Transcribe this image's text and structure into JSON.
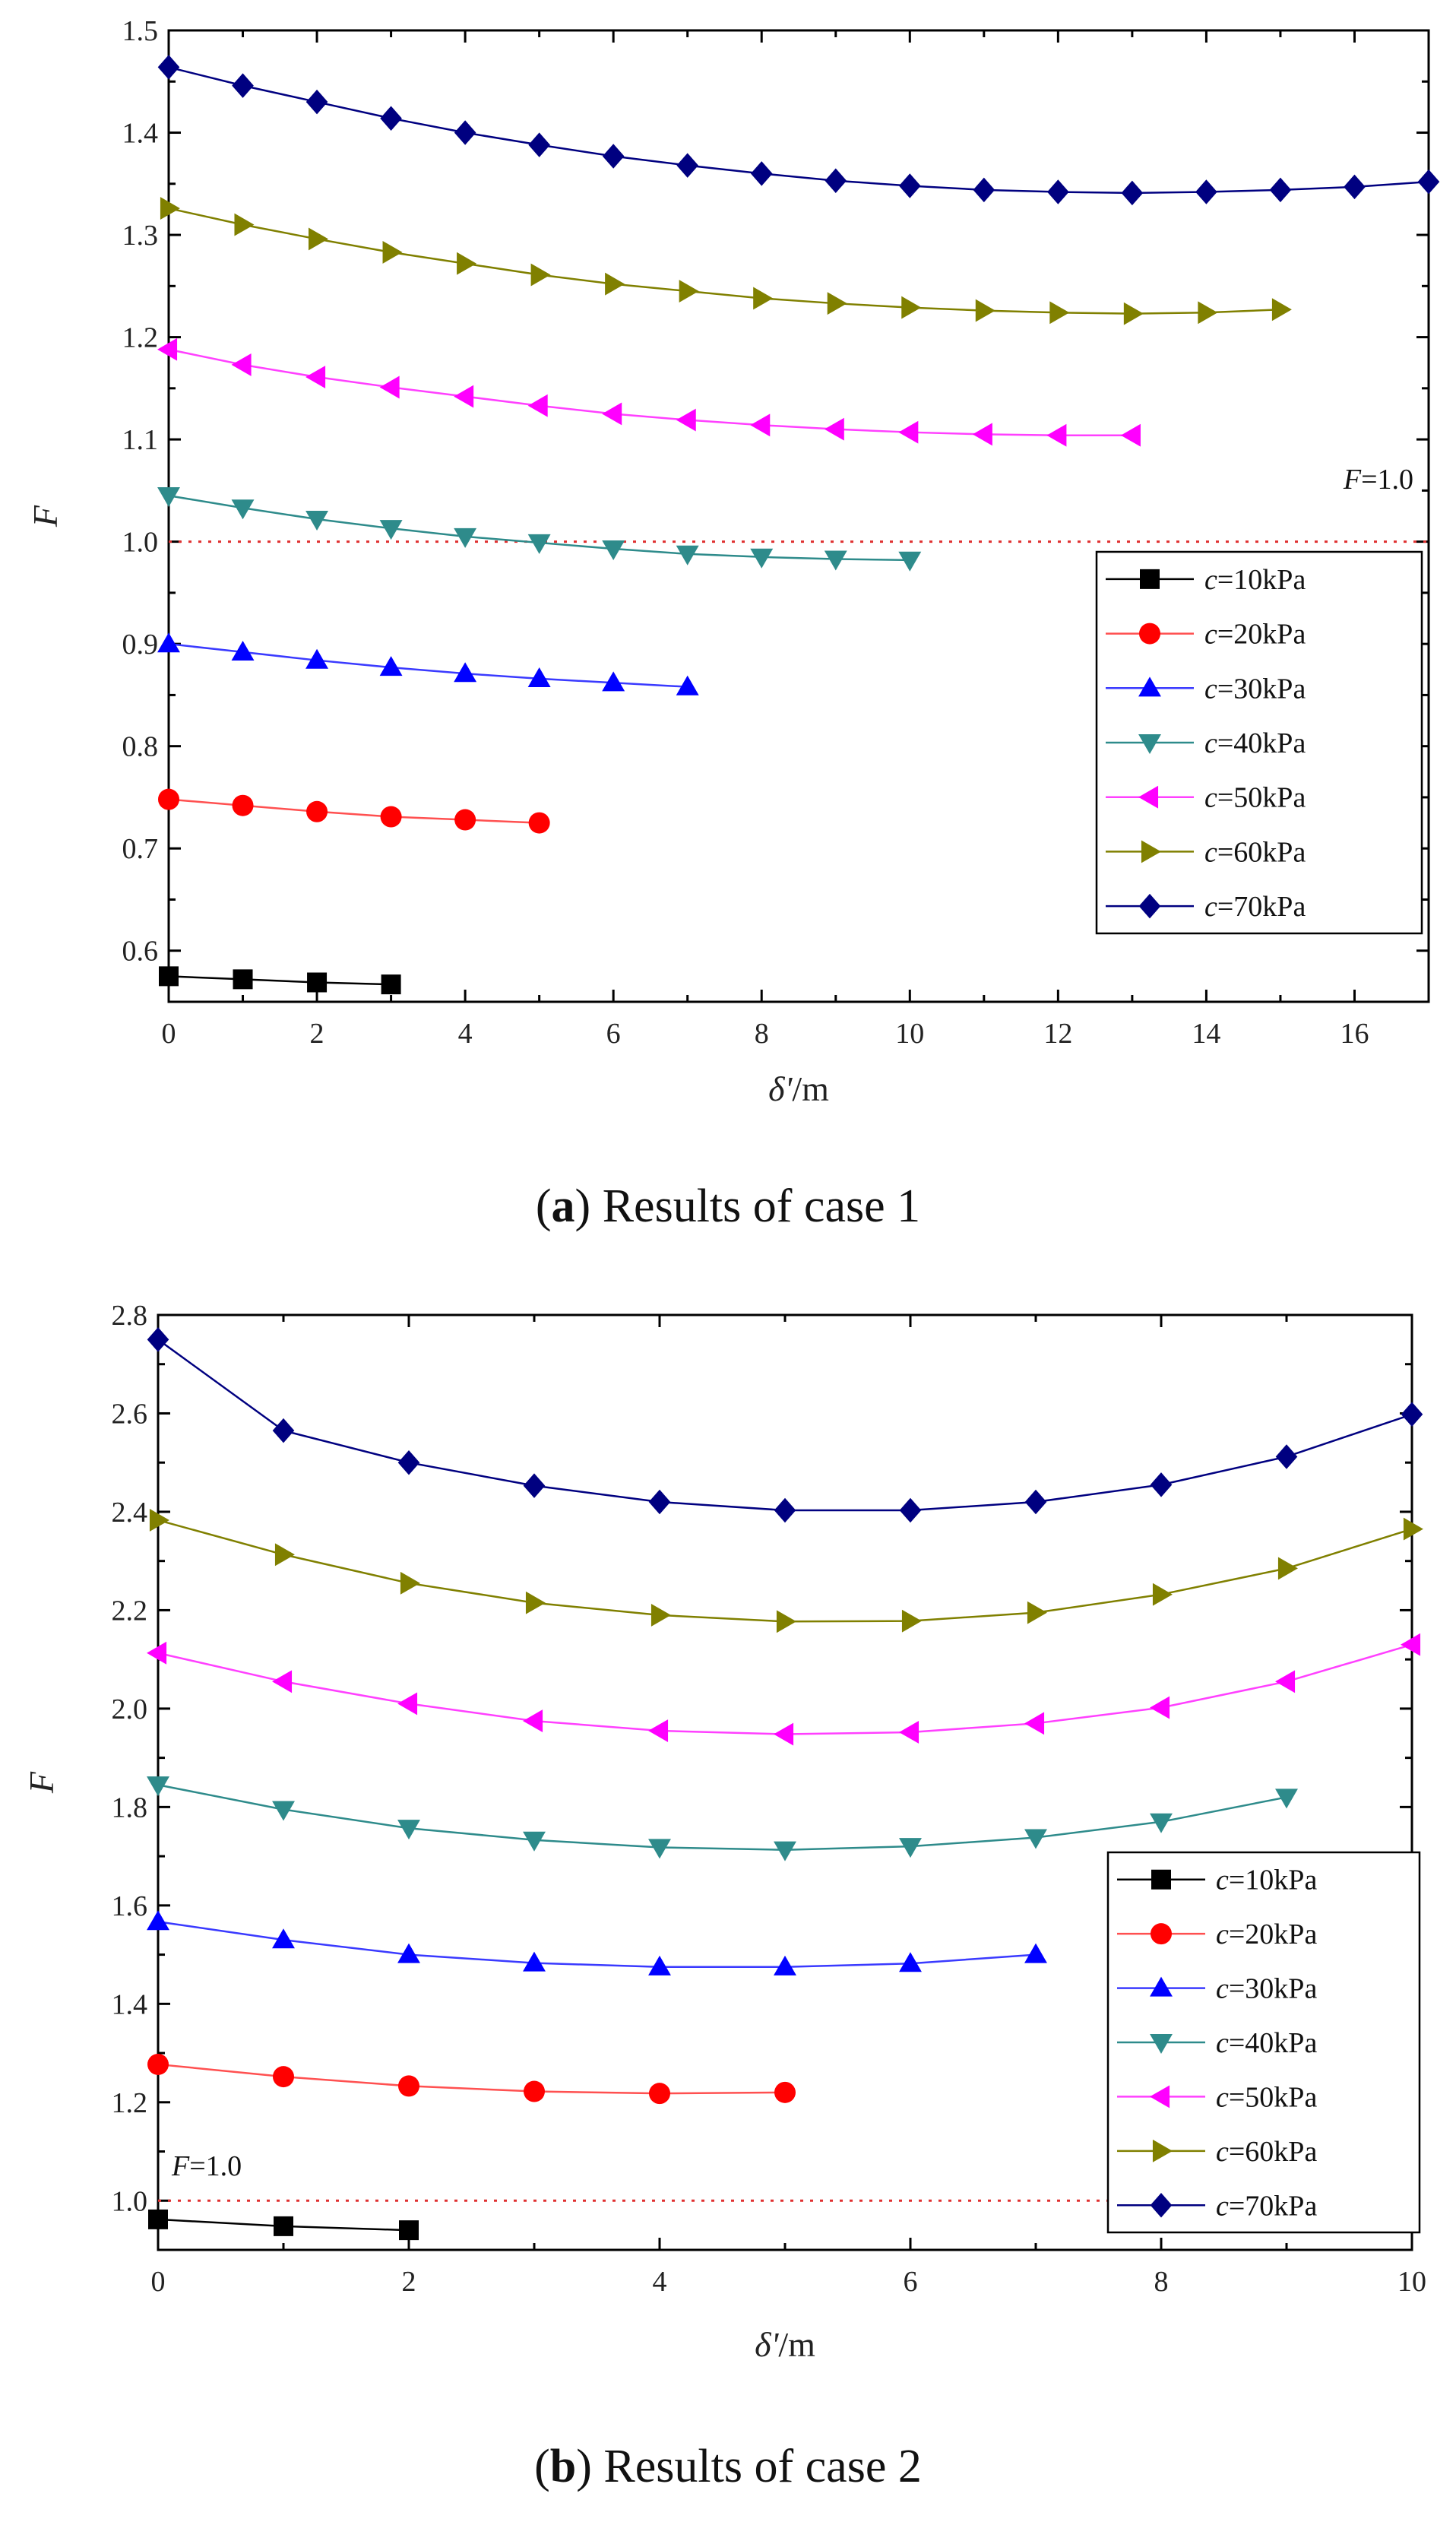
{
  "chart_data": [
    {
      "id": "a",
      "type": "line",
      "caption_letter": "a",
      "caption_text": "Results of case 1",
      "xlabel": "δ'/m",
      "ylabel": "F",
      "xlim": [
        0,
        17
      ],
      "ylim": [
        0.55,
        1.5
      ],
      "xticks": [
        0,
        2,
        4,
        6,
        8,
        10,
        12,
        14,
        16
      ],
      "xtick_labels": [
        "0",
        "2",
        "4",
        "6",
        "8",
        "10",
        "12",
        "14",
        "16"
      ],
      "yticks": [
        0.6,
        0.7,
        0.8,
        0.9,
        1.0,
        1.1,
        1.2,
        1.3,
        1.4,
        1.5
      ],
      "ytick_labels": [
        "0.6",
        "0.7",
        "0.8",
        "0.9",
        "1.0",
        "1.1",
        "1.2",
        "1.3",
        "1.4",
        "1.5"
      ],
      "reference_line": {
        "y": 1.0,
        "label": "F=1.0"
      },
      "legend_position": "right",
      "series": [
        {
          "name": "c=10kPa",
          "color": "#000000",
          "line_color": "#000000",
          "marker": "square",
          "x": [
            0,
            1,
            2,
            3
          ],
          "y": [
            0.575,
            0.572,
            0.569,
            0.567
          ]
        },
        {
          "name": "c=20kPa",
          "color": "#ff0000",
          "line_color": "#ff5050",
          "marker": "circle",
          "x": [
            0,
            1,
            2,
            3,
            4,
            5
          ],
          "y": [
            0.748,
            0.742,
            0.736,
            0.731,
            0.728,
            0.725
          ]
        },
        {
          "name": "c=30kPa",
          "color": "#0000ff",
          "line_color": "#3a3aff",
          "marker": "triangle-up",
          "x": [
            0,
            1,
            2,
            3,
            4,
            5,
            6,
            7
          ],
          "y": [
            0.9,
            0.892,
            0.884,
            0.877,
            0.871,
            0.866,
            0.862,
            0.858
          ]
        },
        {
          "name": "c=40kPa",
          "color": "#2e8b8b",
          "line_color": "#2e8b8b",
          "marker": "triangle-down",
          "x": [
            0,
            1,
            2,
            3,
            4,
            5,
            6,
            7,
            8,
            9,
            10
          ],
          "y": [
            1.045,
            1.033,
            1.022,
            1.013,
            1.005,
            0.999,
            0.993,
            0.988,
            0.985,
            0.983,
            0.982
          ]
        },
        {
          "name": "c=50kPa",
          "color": "#ff00ff",
          "line_color": "#ff40ff",
          "marker": "triangle-left",
          "x": [
            0,
            1,
            2,
            3,
            4,
            5,
            6,
            7,
            8,
            9,
            10,
            11,
            12,
            13
          ],
          "y": [
            1.188,
            1.173,
            1.161,
            1.151,
            1.142,
            1.133,
            1.125,
            1.119,
            1.114,
            1.11,
            1.107,
            1.105,
            1.104,
            1.104
          ]
        },
        {
          "name": "c=60kPa",
          "color": "#808000",
          "line_color": "#808000",
          "marker": "triangle-right",
          "x": [
            0,
            1,
            2,
            3,
            4,
            5,
            6,
            7,
            8,
            9,
            10,
            11,
            12,
            13,
            14,
            15
          ],
          "y": [
            1.326,
            1.31,
            1.296,
            1.283,
            1.272,
            1.261,
            1.252,
            1.245,
            1.238,
            1.233,
            1.229,
            1.226,
            1.224,
            1.223,
            1.224,
            1.227
          ]
        },
        {
          "name": "c=70kPa",
          "color": "#000080",
          "line_color": "#000080",
          "marker": "diamond",
          "x": [
            0,
            1,
            2,
            3,
            4,
            5,
            6,
            7,
            8,
            9,
            10,
            11,
            12,
            13,
            14,
            15,
            16,
            17
          ],
          "y": [
            1.464,
            1.446,
            1.43,
            1.414,
            1.4,
            1.388,
            1.377,
            1.368,
            1.36,
            1.353,
            1.348,
            1.344,
            1.342,
            1.341,
            1.342,
            1.344,
            1.347,
            1.352
          ]
        }
      ]
    },
    {
      "id": "b",
      "type": "line",
      "caption_letter": "b",
      "caption_text": "Results of case 2",
      "xlabel": "δ'/m",
      "ylabel": "F",
      "xlim": [
        0,
        10
      ],
      "ylim": [
        0.9,
        2.8
      ],
      "xticks": [
        0,
        2,
        4,
        6,
        8,
        10
      ],
      "xtick_labels": [
        "0",
        "2",
        "4",
        "6",
        "8",
        "10"
      ],
      "yticks": [
        1.0,
        1.2,
        1.4,
        1.6,
        1.8,
        2.0,
        2.2,
        2.4,
        2.6,
        2.8
      ],
      "ytick_labels": [
        "1.0",
        "1.2",
        "1.4",
        "1.6",
        "1.8",
        "2.0",
        "2.2",
        "2.4",
        "2.6",
        "2.8"
      ],
      "reference_line": {
        "y": 1.0,
        "label": "F=1.0"
      },
      "legend_position": "right",
      "series": [
        {
          "name": "c=10kPa",
          "color": "#000000",
          "line_color": "#000000",
          "marker": "square",
          "x": [
            0,
            1,
            2
          ],
          "y": [
            0.962,
            0.948,
            0.94
          ]
        },
        {
          "name": "c=20kPa",
          "color": "#ff0000",
          "line_color": "#ff5050",
          "marker": "circle",
          "x": [
            0,
            1,
            2,
            3,
            4,
            5
          ],
          "y": [
            1.277,
            1.252,
            1.233,
            1.222,
            1.218,
            1.22
          ]
        },
        {
          "name": "c=30kPa",
          "color": "#0000ff",
          "line_color": "#3a3aff",
          "marker": "triangle-up",
          "x": [
            0,
            1,
            2,
            3,
            4,
            5,
            6,
            7
          ],
          "y": [
            1.567,
            1.53,
            1.5,
            1.483,
            1.475,
            1.475,
            1.482,
            1.5
          ]
        },
        {
          "name": "c=40kPa",
          "color": "#2e8b8b",
          "line_color": "#2e8b8b",
          "marker": "triangle-down",
          "x": [
            0,
            1,
            2,
            3,
            4,
            5,
            6,
            7,
            8,
            9
          ],
          "y": [
            1.845,
            1.795,
            1.757,
            1.733,
            1.718,
            1.713,
            1.72,
            1.738,
            1.77,
            1.82
          ]
        },
        {
          "name": "c=50kPa",
          "color": "#ff00ff",
          "line_color": "#ff40ff",
          "marker": "triangle-left",
          "x": [
            0,
            1,
            2,
            3,
            4,
            5,
            6,
            7,
            8,
            9,
            10
          ],
          "y": [
            2.113,
            2.055,
            2.01,
            1.975,
            1.955,
            1.948,
            1.952,
            1.97,
            2.002,
            2.055,
            2.13
          ]
        },
        {
          "name": "c=60kPa",
          "color": "#808000",
          "line_color": "#808000",
          "marker": "triangle-right",
          "x": [
            0,
            1,
            2,
            3,
            4,
            5,
            6,
            7,
            8,
            9,
            10
          ],
          "y": [
            2.383,
            2.313,
            2.255,
            2.215,
            2.19,
            2.177,
            2.178,
            2.195,
            2.232,
            2.285,
            2.365
          ]
        },
        {
          "name": "c=70kPa",
          "color": "#000080",
          "line_color": "#000080",
          "marker": "diamond",
          "x": [
            0,
            1,
            2,
            3,
            4,
            5,
            6,
            7,
            8,
            9,
            10
          ],
          "y": [
            2.75,
            2.565,
            2.5,
            2.453,
            2.42,
            2.403,
            2.403,
            2.42,
            2.455,
            2.512,
            2.598
          ]
        }
      ]
    }
  ]
}
